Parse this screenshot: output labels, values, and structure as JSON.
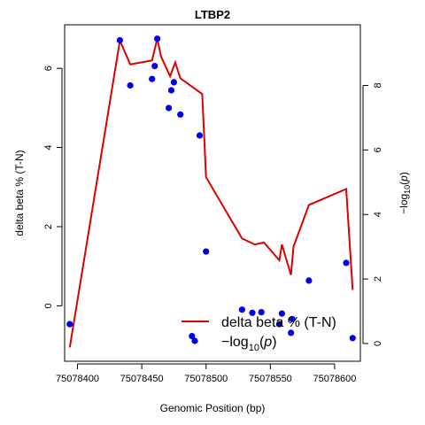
{
  "chart_data": {
    "type": "line",
    "title": "LTBP2",
    "xlabel": "Genomic Position (bp)",
    "ylabel_left": "delta beta % (T-N)",
    "ylabel_right": "−log10(p)",
    "xlim": [
      75078390,
      75078620
    ],
    "ylim_left": [
      -1.4,
      7.1
    ],
    "ylim_right": [
      -0.55,
      9.88
    ],
    "x_ticks": [
      75078400,
      75078450,
      75078500,
      75078550,
      75078600
    ],
    "x_tick_labels": [
      "75078400",
      "75078450",
      "75078500",
      "75078550",
      "75078600"
    ],
    "y_left_ticks": [
      0,
      2,
      4,
      6
    ],
    "y_left_tick_labels": [
      "0",
      "2",
      "4",
      "6"
    ],
    "y_right_ticks": [
      0,
      2,
      4,
      6,
      8
    ],
    "y_right_tick_labels": [
      "0",
      "2",
      "4",
      "6",
      "8"
    ],
    "grid": false,
    "legend_position": "bottom-right",
    "series": [
      {
        "name": "delta beta % (T-N)",
        "axis": "left",
        "color": "#dd0000",
        "style": "line",
        "x": [
          75078394,
          75078433,
          75078441,
          75078458,
          75078462,
          75078465,
          75078472,
          75078476,
          75078480,
          75078497,
          75078500,
          75078528,
          75078538,
          75078545,
          75078557,
          75078559,
          75078566,
          75078568,
          75078580,
          75078609,
          75078614
        ],
        "y": [
          -1.05,
          6.7,
          6.1,
          6.2,
          6.75,
          6.3,
          5.8,
          6.15,
          5.75,
          5.35,
          3.25,
          1.7,
          1.55,
          1.6,
          1.15,
          1.55,
          0.78,
          1.5,
          2.55,
          2.95,
          0.4
        ]
      },
      {
        "name": "−log10(p)",
        "axis": "right",
        "color": "#0000ee",
        "style": "points",
        "x": [
          75078394,
          75078433,
          75078441,
          75078458,
          75078460,
          75078462,
          75078471,
          75078473,
          75078475,
          75078480,
          75078489,
          75078495,
          75078500,
          75078528,
          75078536,
          75078543,
          75078557,
          75078559,
          75078566,
          75078567,
          75078580,
          75078609,
          75078614
        ],
        "y": [
          0.6,
          9.4,
          8.0,
          8.2,
          8.6,
          9.45,
          7.3,
          7.85,
          8.1,
          7.1,
          0.23,
          6.45,
          2.85,
          1.05,
          0.95,
          0.97,
          0.6,
          0.93,
          0.33,
          0.76,
          1.95,
          2.5,
          0.17
        ]
      }
    ],
    "legend": {
      "line_label": "delta beta % (T-N)",
      "points_label_prefix": "−log",
      "points_label_sub": "10",
      "points_label_var": "p"
    }
  }
}
